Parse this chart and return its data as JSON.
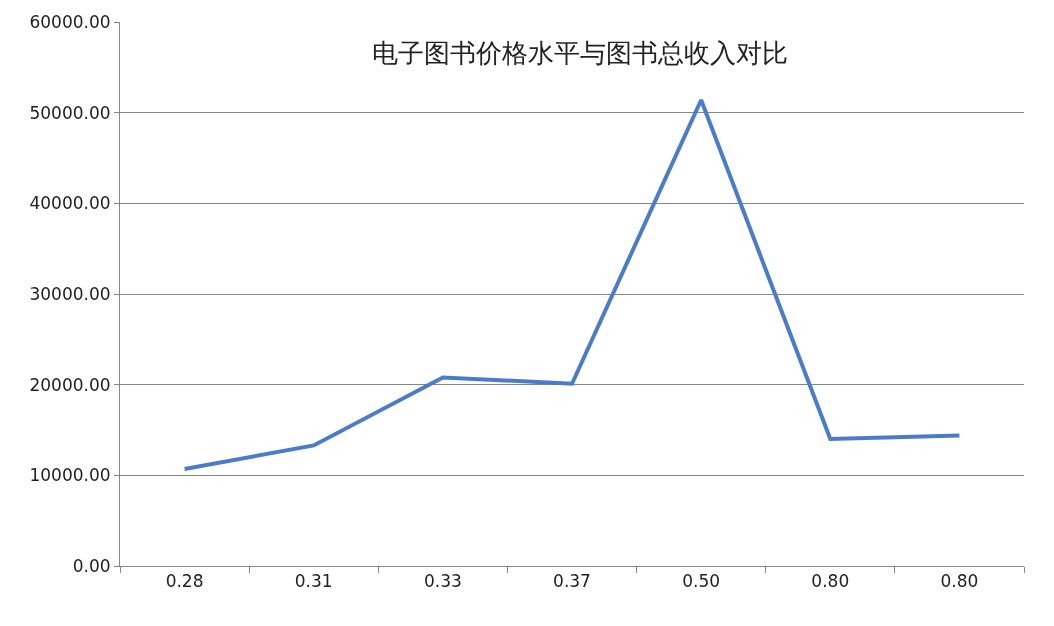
{
  "chart_data": {
    "type": "line",
    "title": "电子图书价格水平与图书总收入对比",
    "categories": [
      "0.28",
      "0.31",
      "0.33",
      "0.37",
      "0.50",
      "0.80",
      "0.80"
    ],
    "series": [
      {
        "color": "#4a7cc9",
        "values": [
          10700,
          13300,
          20800,
          20100,
          51400,
          14000,
          14400
        ]
      }
    ],
    "ylim": [
      0,
      60000
    ],
    "yticks": [
      {
        "value": 0,
        "label": "0.00"
      },
      {
        "value": 10000,
        "label": "10000.00"
      },
      {
        "value": 20000,
        "label": "20000.00"
      },
      {
        "value": 30000,
        "label": "30000.00"
      },
      {
        "value": 40000,
        "label": "40000.00"
      },
      {
        "value": 50000,
        "label": "50000.00"
      },
      {
        "value": 60000,
        "label": "60000.00"
      }
    ],
    "grid": "y",
    "legend": false,
    "marker": "none",
    "line_style": "solid"
  }
}
